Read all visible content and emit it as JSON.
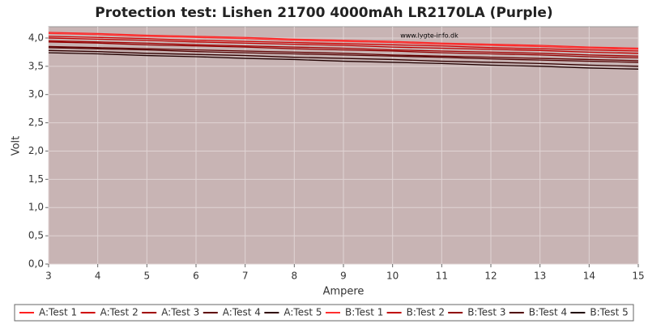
{
  "chart_data": {
    "type": "line",
    "title": "Protection test: Lishen 21700 4000mAh LR2170LA (Purple)",
    "watermark": "www.lygte-info.dk",
    "xlabel": "Ampere",
    "ylabel": "Volt",
    "xlim": [
      3,
      15
    ],
    "ylim": [
      0,
      4.2
    ],
    "xticks": [
      3,
      4,
      5,
      6,
      7,
      8,
      9,
      10,
      11,
      12,
      13,
      14,
      15
    ],
    "yticks": [
      {
        "value": 0,
        "label": "0,0"
      },
      {
        "value": 0.5,
        "label": "0,5"
      },
      {
        "value": 1,
        "label": "1,0"
      },
      {
        "value": 1.5,
        "label": "1,5"
      },
      {
        "value": 2,
        "label": "2,0"
      },
      {
        "value": 2.5,
        "label": "2,5"
      },
      {
        "value": 3,
        "label": "3,0"
      },
      {
        "value": 3.5,
        "label": "3,5"
      },
      {
        "value": 4,
        "label": "4,0"
      }
    ],
    "grid": true,
    "legend": "bottom",
    "x": [
      3,
      4,
      5,
      6,
      7,
      8,
      9,
      10,
      11,
      12,
      13,
      14,
      15
    ],
    "series": [
      {
        "name": "A:Test 1",
        "color": "#ff2020",
        "values": [
          4.1,
          4.08,
          4.05,
          4.03,
          4.01,
          3.98,
          3.96,
          3.94,
          3.91,
          3.89,
          3.87,
          3.84,
          3.82
        ]
      },
      {
        "name": "A:Test 2",
        "color": "#d00000",
        "values": [
          4.03,
          4.01,
          3.99,
          3.96,
          3.94,
          3.92,
          3.9,
          3.88,
          3.86,
          3.83,
          3.81,
          3.79,
          3.77
        ]
      },
      {
        "name": "A:Test 3",
        "color": "#a00000",
        "values": [
          3.95,
          3.93,
          3.91,
          3.88,
          3.86,
          3.84,
          3.82,
          3.79,
          3.77,
          3.75,
          3.73,
          3.7,
          3.68
        ]
      },
      {
        "name": "A:Test 4",
        "color": "#600000",
        "values": [
          3.85,
          3.83,
          3.81,
          3.79,
          3.77,
          3.75,
          3.73,
          3.7,
          3.68,
          3.66,
          3.64,
          3.62,
          3.6
        ]
      },
      {
        "name": "A:Test 5",
        "color": "#300000",
        "values": [
          3.78,
          3.76,
          3.73,
          3.71,
          3.69,
          3.66,
          3.64,
          3.62,
          3.59,
          3.57,
          3.55,
          3.52,
          3.5
        ]
      },
      {
        "name": "B:Test 1",
        "color": "#ff3030",
        "values": [
          4.08,
          4.06,
          4.03,
          4.01,
          3.99,
          3.96,
          3.94,
          3.92,
          3.89,
          3.87,
          3.85,
          3.82,
          3.8
        ]
      },
      {
        "name": "B:Test 2",
        "color": "#c00000",
        "values": [
          4.0,
          3.98,
          3.96,
          3.93,
          3.91,
          3.89,
          3.87,
          3.84,
          3.82,
          3.8,
          3.78,
          3.75,
          3.73
        ]
      },
      {
        "name": "B:Test 3",
        "color": "#900000",
        "values": [
          3.93,
          3.91,
          3.88,
          3.86,
          3.84,
          3.81,
          3.79,
          3.77,
          3.74,
          3.72,
          3.7,
          3.67,
          3.65
        ]
      },
      {
        "name": "B:Test 4",
        "color": "#500000",
        "values": [
          3.83,
          3.81,
          3.79,
          3.76,
          3.74,
          3.72,
          3.7,
          3.68,
          3.66,
          3.63,
          3.61,
          3.59,
          3.57
        ]
      },
      {
        "name": "B:Test 5",
        "color": "#200000",
        "values": [
          3.74,
          3.72,
          3.69,
          3.67,
          3.64,
          3.62,
          3.59,
          3.57,
          3.55,
          3.52,
          3.5,
          3.47,
          3.45
        ]
      }
    ]
  }
}
